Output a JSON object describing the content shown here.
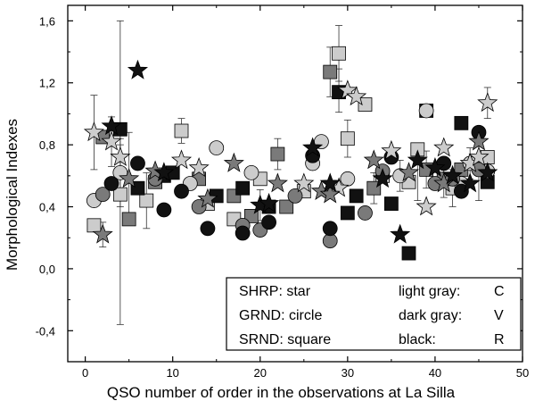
{
  "chart_data": {
    "type": "scatter",
    "xlabel": "QSO number of order in the observations at La Silla",
    "ylabel": "Morphological Indexes",
    "xlim": [
      -2,
      50
    ],
    "ylim": [
      -0.6,
      1.7
    ],
    "x_ticks": [
      0,
      10,
      20,
      30,
      40,
      50
    ],
    "x_tick_labels": [
      "0",
      "10",
      "20",
      "30",
      "40",
      "50"
    ],
    "y_ticks": [
      -0.4,
      0.0,
      0.4,
      0.8,
      1.2,
      1.6
    ],
    "y_tick_labels": [
      "-0,4",
      "0,0",
      "0,4",
      "0,8",
      "1,2",
      "1,6"
    ],
    "legend": {
      "rows": [
        {
          "left": "SHRP: star",
          "right_label": "light gray:",
          "right_value": "C"
        },
        {
          "left": "GRND: circle",
          "right_label": "dark gray:",
          "right_value": "V"
        },
        {
          "left": "SRND: square",
          "right_label": "black:",
          "right_value": "R"
        }
      ],
      "placement": "bottom-right"
    },
    "colors": {
      "light_gray": "#cccccc",
      "dark_gray": "#7a7a7a",
      "black": "#111111"
    },
    "series": [
      {
        "name": "SHRP C",
        "marker": "star",
        "color": "light_gray",
        "x": [
          1,
          3,
          4,
          11,
          13,
          25,
          29,
          30,
          31,
          35,
          39,
          41,
          44,
          45,
          46
        ],
        "y": [
          0.88,
          0.82,
          0.72,
          0.7,
          0.65,
          0.55,
          0.52,
          1.15,
          1.11,
          0.76,
          0.4,
          0.78,
          0.68,
          0.72,
          1.07
        ]
      },
      {
        "name": "SHRP V",
        "marker": "star",
        "color": "dark_gray",
        "x": [
          2,
          5,
          8,
          14,
          17,
          22,
          27,
          28,
          33,
          37,
          41,
          45
        ],
        "y": [
          0.22,
          0.58,
          0.63,
          0.45,
          0.68,
          0.55,
          0.5,
          0.48,
          0.7,
          0.62,
          0.55,
          0.82
        ]
      },
      {
        "name": "SHRP R",
        "marker": "star",
        "color": "black",
        "x": [
          3,
          6,
          9,
          20,
          21,
          26,
          28,
          34,
          36,
          38,
          40,
          42,
          44,
          46
        ],
        "y": [
          0.92,
          1.28,
          0.62,
          0.41,
          0.42,
          0.78,
          0.55,
          0.58,
          0.22,
          0.7,
          0.65,
          0.6,
          0.55,
          0.62
        ]
      },
      {
        "name": "GRND C",
        "marker": "circle",
        "color": "light_gray",
        "x": [
          1,
          4,
          12,
          15,
          19,
          26,
          27,
          30,
          36,
          39,
          43,
          44,
          46
        ],
        "y": [
          0.44,
          0.62,
          0.55,
          0.78,
          0.62,
          0.68,
          0.82,
          0.58,
          0.6,
          1.02,
          0.55,
          0.68,
          0.63
        ]
      },
      {
        "name": "GRND V",
        "marker": "circle",
        "color": "dark_gray",
        "x": [
          2,
          8,
          13,
          18,
          20,
          24,
          28,
          32,
          34,
          40,
          42,
          45
        ],
        "y": [
          0.48,
          0.58,
          0.4,
          0.28,
          0.25,
          0.47,
          0.18,
          0.36,
          0.63,
          0.55,
          0.58,
          0.64
        ]
      },
      {
        "name": "GRND R",
        "marker": "circle",
        "color": "black",
        "x": [
          3,
          6,
          9,
          11,
          14,
          18,
          21,
          26,
          28,
          35,
          41,
          43,
          45
        ],
        "y": [
          0.55,
          0.68,
          0.38,
          0.5,
          0.26,
          0.23,
          0.3,
          0.73,
          0.26,
          0.72,
          0.68,
          0.5,
          0.88
        ]
      },
      {
        "name": "SRND C",
        "marker": "square",
        "color": "light_gray",
        "x": [
          1,
          4,
          7,
          11,
          14,
          17,
          20,
          25,
          29,
          30,
          32,
          34,
          37,
          38,
          42,
          46
        ],
        "y": [
          0.28,
          0.48,
          0.44,
          0.89,
          0.42,
          0.32,
          0.58,
          0.5,
          1.39,
          0.84,
          1.06,
          0.6,
          0.56,
          0.77,
          0.52,
          0.72
        ]
      },
      {
        "name": "SRND V",
        "marker": "square",
        "color": "dark_gray",
        "x": [
          2,
          5,
          8,
          13,
          17,
          19,
          22,
          23,
          28,
          33,
          39,
          41,
          43
        ],
        "y": [
          0.85,
          0.32,
          0.56,
          0.58,
          0.47,
          0.34,
          0.74,
          0.4,
          1.27,
          0.52,
          0.64,
          0.58,
          0.64
        ]
      },
      {
        "name": "SRND R",
        "marker": "square",
        "color": "black",
        "x": [
          4,
          6,
          9,
          10,
          15,
          18,
          21,
          29,
          30,
          31,
          35,
          37,
          39,
          43,
          46
        ],
        "y": [
          0.9,
          0.52,
          0.6,
          0.62,
          0.47,
          0.52,
          0.4,
          1.14,
          0.36,
          0.47,
          0.42,
          0.1,
          1.02,
          0.94,
          0.56
        ]
      }
    ],
    "error_bars": [
      {
        "x": 1,
        "y": 0.88,
        "err": 0.24
      },
      {
        "x": 2,
        "y": 0.22,
        "err": 0.08
      },
      {
        "x": 3,
        "y": 0.82,
        "err": 0.16
      },
      {
        "x": 4,
        "y": 0.62,
        "err": 0.22
      },
      {
        "x": 4,
        "y": 0.72,
        "err": 0.08
      },
      {
        "x": 4,
        "y": 0.62,
        "err": 0.98
      },
      {
        "x": 5,
        "y": 0.58,
        "err": 0.3
      },
      {
        "x": 7,
        "y": 0.44,
        "err": 0.18
      },
      {
        "x": 11,
        "y": 0.89,
        "err": 0.08
      },
      {
        "x": 20,
        "y": 0.41,
        "err": 0.1
      },
      {
        "x": 22,
        "y": 0.74,
        "err": 0.1
      },
      {
        "x": 28,
        "y": 1.27,
        "err": 0.16
      },
      {
        "x": 29,
        "y": 1.39,
        "err": 0.18
      },
      {
        "x": 29,
        "y": 1.15,
        "err": 0.14
      },
      {
        "x": 30,
        "y": 0.84,
        "err": 0.12
      },
      {
        "x": 33,
        "y": 0.52,
        "err": 0.1
      },
      {
        "x": 36,
        "y": 0.6,
        "err": 0.1
      },
      {
        "x": 38,
        "y": 0.56,
        "err": 0.12
      },
      {
        "x": 39,
        "y": 0.64,
        "err": 0.12
      },
      {
        "x": 41,
        "y": 0.58,
        "err": 0.12
      },
      {
        "x": 42,
        "y": 0.52,
        "err": 0.12
      },
      {
        "x": 44,
        "y": 0.68,
        "err": 0.1
      },
      {
        "x": 45,
        "y": 0.64,
        "err": 0.2
      },
      {
        "x": 46,
        "y": 1.07,
        "err": 0.1
      }
    ]
  }
}
